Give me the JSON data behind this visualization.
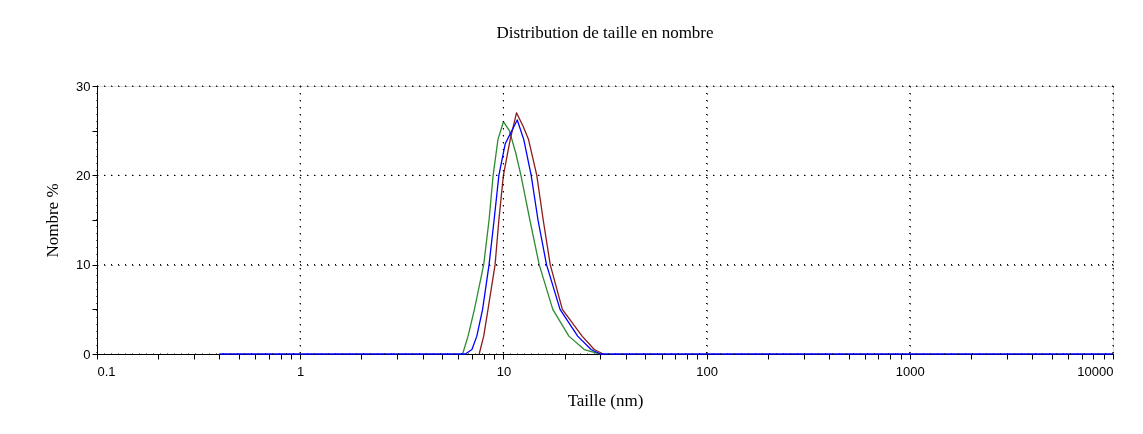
{
  "chart_data": {
    "type": "line",
    "title": "Distribution de taille en nombre",
    "xlabel": "Taille (nm)",
    "ylabel": "Nombre  %",
    "log": "x",
    "grid": true,
    "marker": "none",
    "line_style": "solid",
    "xlim": [
      0.1,
      10000
    ],
    "ylim": [
      0,
      30
    ],
    "xticks": [
      0.1,
      {
        "value": 0.2,
        "label": null
      },
      {
        "value": 0.3,
        "label": null
      },
      {
        "value": 0.4,
        "label": null
      },
      {
        "value": 0.5,
        "label": null
      },
      {
        "value": 0.6,
        "label": null
      },
      {
        "value": 0.7,
        "label": null
      },
      {
        "value": 0.8,
        "label": null
      },
      {
        "value": 0.9,
        "label": null
      },
      1,
      {
        "value": 2,
        "label": null
      },
      {
        "value": 3,
        "label": null
      },
      {
        "value": 4,
        "label": null
      },
      {
        "value": 5,
        "label": null
      },
      {
        "value": 6,
        "label": null
      },
      {
        "value": 7,
        "label": null
      },
      {
        "value": 8,
        "label": null
      },
      {
        "value": 9,
        "label": null
      },
      10,
      {
        "value": 20,
        "label": null
      },
      {
        "value": 30,
        "label": null
      },
      {
        "value": 40,
        "label": null
      },
      {
        "value": 50,
        "label": null
      },
      {
        "value": 60,
        "label": null
      },
      {
        "value": 70,
        "label": null
      },
      {
        "value": 80,
        "label": null
      },
      {
        "value": 90,
        "label": null
      },
      100,
      {
        "value": 200,
        "label": null
      },
      {
        "value": 300,
        "label": null
      },
      {
        "value": 400,
        "label": null
      },
      {
        "value": 500,
        "label": null
      },
      {
        "value": 600,
        "label": null
      },
      {
        "value": 700,
        "label": null
      },
      {
        "value": 800,
        "label": null
      },
      {
        "value": 900,
        "label": null
      },
      1000,
      {
        "value": 2000,
        "label": null
      },
      {
        "value": 3000,
        "label": null
      },
      {
        "value": 4000,
        "label": null
      },
      {
        "value": 5000,
        "label": null
      },
      {
        "value": 6000,
        "label": null
      },
      {
        "value": 7000,
        "label": null
      },
      {
        "value": 8000,
        "label": null
      },
      {
        "value": 9000,
        "label": null
      },
      10000
    ],
    "yticks": [
      0,
      {
        "value": 5,
        "label": null
      },
      10,
      {
        "value": 15,
        "label": null
      },
      20,
      {
        "value": 25,
        "label": null
      },
      30
    ],
    "series": [
      {
        "color": "#2e8b2e",
        "x": [
          6.3,
          6.7,
          7.2,
          8.0,
          8.5,
          8.9,
          9.4,
          10.0,
          10.7,
          11.5,
          12.2,
          13.5,
          15.0,
          17.5,
          21,
          25,
          30
        ],
        "values": [
          0,
          2,
          5,
          10,
          15,
          20,
          24,
          26.0,
          25,
          22.5,
          20,
          15,
          10,
          5,
          2,
          0.5,
          0
        ]
      },
      {
        "color": "#8b1a1a",
        "x": [
          7.6,
          8.0,
          8.4,
          9.1,
          9.5,
          10.0,
          10.8,
          11.6,
          12.5,
          13.3,
          14.6,
          15.7,
          17,
          19.5,
          24.4,
          28,
          31
        ],
        "values": [
          0,
          2,
          5,
          10,
          15,
          20,
          24,
          27.0,
          25.5,
          24,
          20,
          15,
          10,
          5,
          2,
          0.5,
          0
        ]
      },
      {
        "color": "#0000ff",
        "x": [
          0.4,
          6.5,
          7.0,
          7.4,
          7.9,
          8.5,
          9.0,
          9.5,
          10.2,
          11.0,
          11.7,
          12.6,
          13.7,
          14.8,
          16.3,
          19,
          23.2,
          27,
          30,
          10000
        ],
        "values": [
          0,
          0,
          0.5,
          2,
          5,
          10,
          15,
          20,
          23.5,
          25,
          26.2,
          24,
          20,
          15,
          10,
          5,
          2,
          0.5,
          0,
          0
        ]
      }
    ]
  }
}
